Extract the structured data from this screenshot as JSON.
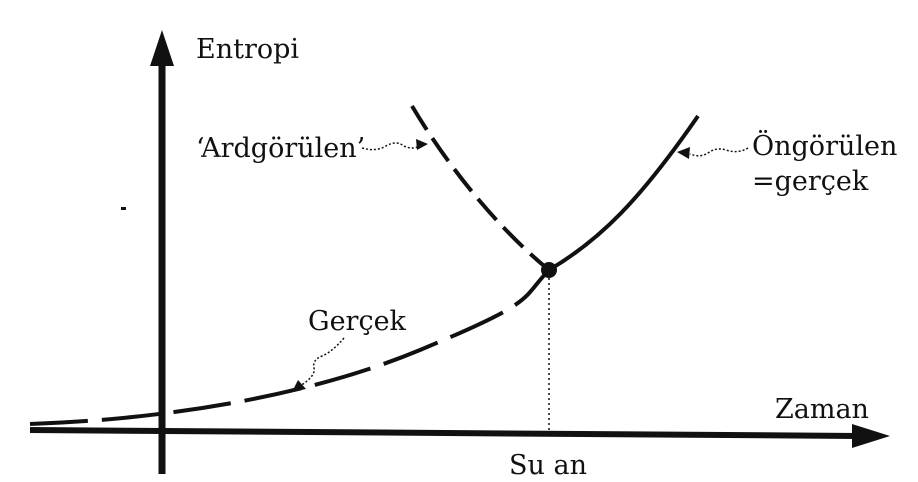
{
  "diagram": {
    "y_axis_label": "Entropi",
    "x_axis_label": "Zaman",
    "now_label": "Su an",
    "curve_labels": {
      "retrodicted": "‘Ardgörülen’",
      "predicted_line1": "Öngörülen",
      "predicted_line2": "=gerçek",
      "actual": "Gerçek"
    },
    "colors": {
      "ink": "#111111",
      "background": "#ffffff"
    }
  }
}
